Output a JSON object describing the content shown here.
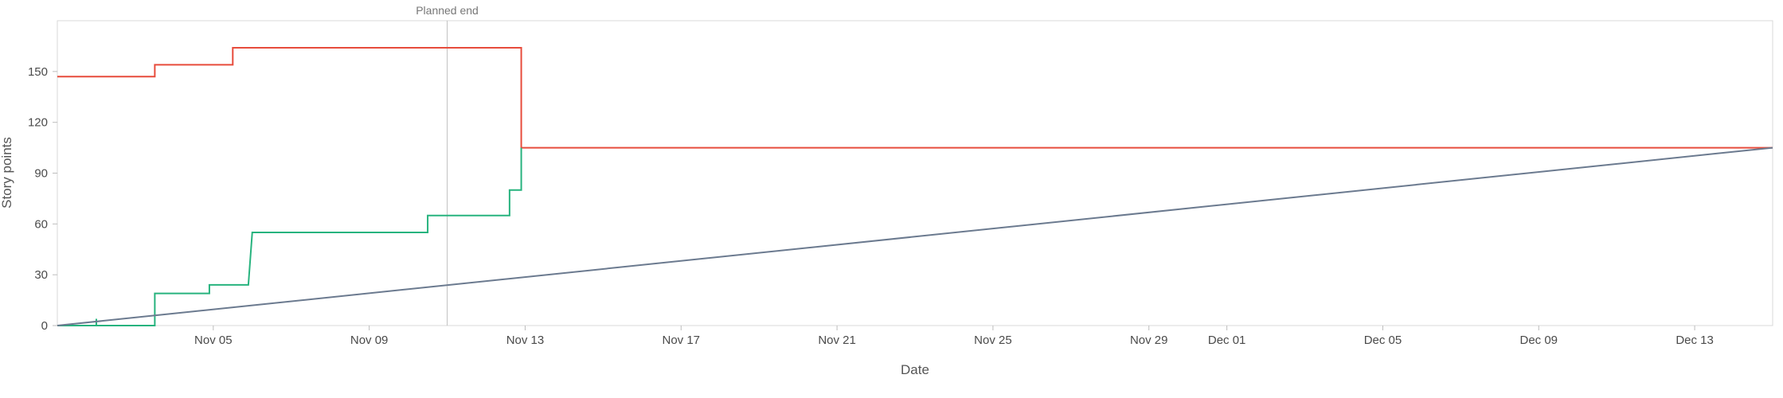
{
  "chart_data": {
    "type": "line",
    "title": "",
    "xlabel": "Date",
    "ylabel": "Story points",
    "xlim": [
      "2025-11-01",
      "2025-12-15"
    ],
    "ylim": [
      0,
      180
    ],
    "x_ticks": [
      "Nov 05",
      "Nov 09",
      "Nov 13",
      "Nov 17",
      "Nov 21",
      "Nov 25",
      "Nov 29",
      "Dec 01",
      "Dec 05",
      "Dec 09",
      "Dec 13"
    ],
    "x_tick_dates": [
      "2025-11-05",
      "2025-11-09",
      "2025-11-13",
      "2025-11-17",
      "2025-11-21",
      "2025-11-25",
      "2025-11-29",
      "2025-12-01",
      "2025-12-05",
      "2025-12-09",
      "2025-12-13"
    ],
    "y_ticks": [
      0,
      30,
      60,
      90,
      120,
      150
    ],
    "grid": false,
    "annotations": [
      {
        "type": "vline",
        "x": "2025-11-11",
        "label": "Planned end",
        "color": "#c8c8c8"
      }
    ],
    "series": [
      {
        "color": "#e74c3c",
        "step": true,
        "points": [
          [
            "2025-11-01",
            147
          ],
          [
            "2025-11-03.5",
            147
          ],
          [
            "2025-11-03.5",
            154
          ],
          [
            "2025-11-05.5",
            154
          ],
          [
            "2025-11-05.5",
            164
          ],
          [
            "2025-11-12.9",
            164
          ],
          [
            "2025-11-12.9",
            105
          ],
          [
            "2025-12-15",
            105
          ]
        ]
      },
      {
        "color": "#27b37e",
        "step": true,
        "points": [
          [
            "2025-11-01",
            0
          ],
          [
            "2025-11-02",
            0
          ],
          [
            "2025-11-02",
            4
          ],
          [
            "2025-11-02",
            0
          ],
          [
            "2025-11-03.5",
            0
          ],
          [
            "2025-11-03.5",
            19
          ],
          [
            "2025-11-04.9",
            19
          ],
          [
            "2025-11-04.9",
            24
          ],
          [
            "2025-11-05.9",
            24
          ],
          [
            "2025-11-06",
            55
          ],
          [
            "2025-11-10.5",
            55
          ],
          [
            "2025-11-10.5",
            65
          ],
          [
            "2025-11-12.6",
            65
          ],
          [
            "2025-11-12.6",
            80
          ],
          [
            "2025-11-12.9",
            80
          ],
          [
            "2025-11-12.9",
            105
          ]
        ]
      },
      {
        "color": "#6b7a8f",
        "step": false,
        "points": [
          [
            "2025-11-01",
            0
          ],
          [
            "2025-12-15",
            105
          ]
        ]
      }
    ]
  }
}
